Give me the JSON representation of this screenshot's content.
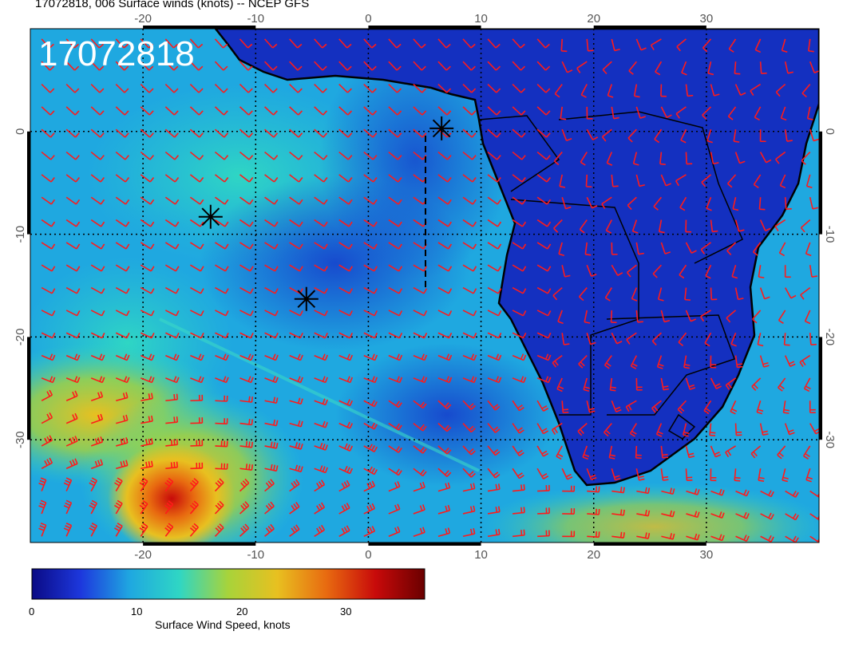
{
  "title": "17072818, 006 Surface winds (knots) -- NCEP GFS",
  "date_stamp": "17072818",
  "map": {
    "lon_range": [
      -30,
      40
    ],
    "lat_range": [
      -40,
      10
    ],
    "lon_ticks": [
      "-20",
      "-10",
      "0",
      "10",
      "20",
      "30"
    ],
    "lat_ticks": [
      "0",
      "-10",
      "-20",
      "-30"
    ],
    "ocean_color": "#1b4fd8",
    "land_color": "#1226b8",
    "wind_barb_color": "#ff1a1a",
    "markers": [
      {
        "name": "star-1",
        "lon": 6.5,
        "lat": 0.3
      },
      {
        "name": "star-2",
        "lon": -14,
        "lat": -8.3
      },
      {
        "name": "star-3",
        "lon": -5.5,
        "lat": -16.3
      }
    ]
  },
  "colorbar": {
    "caption": "Surface Wind Speed, knots",
    "range": [
      0,
      37
    ],
    "ticks": [
      "0",
      "10",
      "20",
      "30"
    ],
    "stops": [
      "#0a0a85",
      "#1d38dd",
      "#1fa8e0",
      "#2fd6c4",
      "#a8d33a",
      "#e8c020",
      "#e86a10",
      "#c80a0a",
      "#6a0000"
    ]
  }
}
